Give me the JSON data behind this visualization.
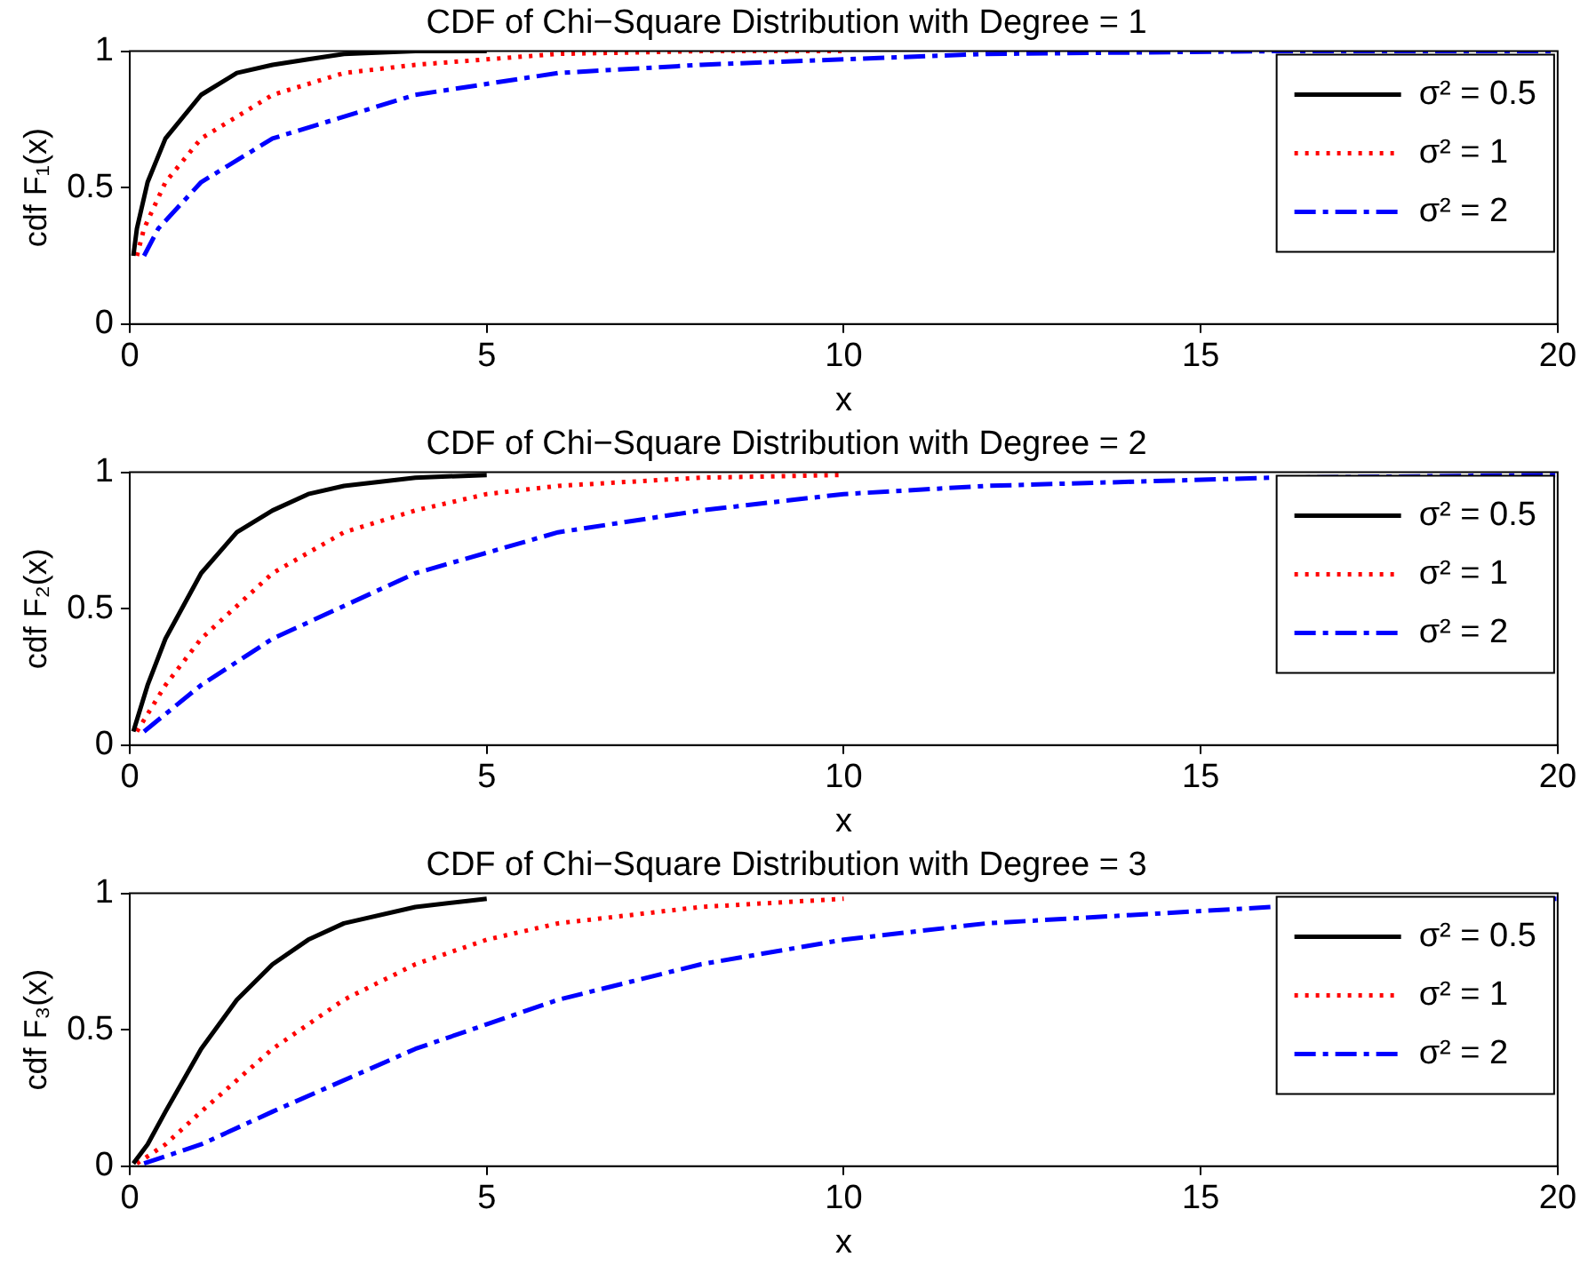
{
  "chart_data": [
    {
      "type": "line",
      "title": "CDF of Chi−Square Distribution with Degree = 1",
      "xlabel": "x",
      "ylabel": "cdf F₁(x)",
      "xlim": [
        0,
        20
      ],
      "xticks": [
        0,
        5,
        10,
        15,
        20
      ],
      "ylim": [
        0,
        1
      ],
      "yticks": [
        0,
        0.5,
        1
      ],
      "grid": false,
      "legend": "top right",
      "marker": "none",
      "series": [
        {
          "name": "σ² = 0.5",
          "color": "#000000",
          "line_style": "solid",
          "x": [
            0.05,
            0.1,
            0.25,
            0.5,
            1,
            1.5,
            2,
            2.5,
            3,
            4,
            5
          ],
          "values": [
            0.25,
            0.35,
            0.52,
            0.68,
            0.84,
            0.92,
            0.95,
            0.97,
            0.99,
            1.0,
            1.0
          ]
        },
        {
          "name": "σ² = 1",
          "color": "#ff0000",
          "line_style": "dotted",
          "x": [
            0.1,
            0.2,
            0.5,
            1,
            2,
            3,
            4,
            5,
            6,
            8,
            10
          ],
          "values": [
            0.25,
            0.35,
            0.52,
            0.68,
            0.84,
            0.92,
            0.95,
            0.97,
            0.99,
            1.0,
            1.0
          ]
        },
        {
          "name": "σ² = 2",
          "color": "#0000ff",
          "line_style": "dashed",
          "x": [
            0.2,
            0.4,
            1,
            2,
            4,
            6,
            8,
            10,
            12,
            16,
            20
          ],
          "values": [
            0.25,
            0.35,
            0.52,
            0.68,
            0.84,
            0.92,
            0.95,
            0.97,
            0.99,
            1.0,
            1.0
          ]
        }
      ]
    },
    {
      "type": "line",
      "title": "CDF of Chi−Square Distribution with Degree = 2",
      "xlabel": "x",
      "ylabel": "cdf F₂(x)",
      "xlim": [
        0,
        20
      ],
      "xticks": [
        0,
        5,
        10,
        15,
        20
      ],
      "ylim": [
        0,
        1
      ],
      "yticks": [
        0,
        0.5,
        1
      ],
      "grid": false,
      "legend": "top right",
      "marker": "none",
      "series": [
        {
          "name": "σ² = 0.5",
          "color": "#000000",
          "line_style": "solid",
          "x": [
            0.05,
            0.25,
            0.5,
            1,
            1.5,
            2,
            2.5,
            3,
            4,
            5
          ],
          "values": [
            0.05,
            0.22,
            0.39,
            0.63,
            0.78,
            0.86,
            0.92,
            0.95,
            0.98,
            0.99
          ]
        },
        {
          "name": "σ² = 1",
          "color": "#ff0000",
          "line_style": "dotted",
          "x": [
            0.1,
            0.5,
            1,
            2,
            3,
            4,
            5,
            6,
            8,
            10
          ],
          "values": [
            0.05,
            0.22,
            0.39,
            0.63,
            0.78,
            0.86,
            0.92,
            0.95,
            0.98,
            0.99
          ]
        },
        {
          "name": "σ² = 2",
          "color": "#0000ff",
          "line_style": "dashed",
          "x": [
            0.2,
            1,
            2,
            4,
            6,
            8,
            10,
            12,
            16,
            20
          ],
          "values": [
            0.05,
            0.22,
            0.39,
            0.63,
            0.78,
            0.86,
            0.92,
            0.95,
            0.98,
            0.99
          ]
        }
      ]
    },
    {
      "type": "line",
      "title": "CDF of Chi−Square Distribution with Degree = 3",
      "xlabel": "x",
      "ylabel": "cdf F₃(x)",
      "xlim": [
        0,
        20
      ],
      "xticks": [
        0,
        5,
        10,
        15,
        20
      ],
      "ylim": [
        0,
        1
      ],
      "yticks": [
        0,
        0.5,
        1
      ],
      "grid": false,
      "legend": "top right",
      "marker": "none",
      "series": [
        {
          "name": "σ² = 0.5",
          "color": "#000000",
          "line_style": "solid",
          "x": [
            0.05,
            0.25,
            0.5,
            1,
            1.5,
            2,
            2.5,
            3,
            4,
            5
          ],
          "values": [
            0.01,
            0.08,
            0.2,
            0.43,
            0.61,
            0.74,
            0.83,
            0.89,
            0.95,
            0.98
          ]
        },
        {
          "name": "σ² = 1",
          "color": "#ff0000",
          "line_style": "dotted",
          "x": [
            0.1,
            0.5,
            1,
            2,
            3,
            4,
            5,
            6,
            8,
            10
          ],
          "values": [
            0.01,
            0.08,
            0.2,
            0.43,
            0.61,
            0.74,
            0.83,
            0.89,
            0.95,
            0.98
          ]
        },
        {
          "name": "σ² = 2",
          "color": "#0000ff",
          "line_style": "dashed",
          "x": [
            0.2,
            1,
            2,
            4,
            6,
            8,
            10,
            12,
            16,
            20
          ],
          "values": [
            0.01,
            0.08,
            0.2,
            0.43,
            0.61,
            0.74,
            0.83,
            0.89,
            0.95,
            0.98
          ]
        }
      ]
    }
  ]
}
